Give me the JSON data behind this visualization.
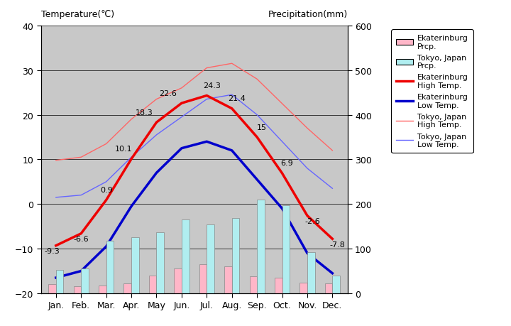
{
  "months": [
    "Jan.",
    "Feb.",
    "Mar.",
    "Apr.",
    "May",
    "Jun.",
    "Jul.",
    "Aug.",
    "Sep.",
    "Oct.",
    "Nov.",
    "Dec."
  ],
  "eka_high": [
    -9.3,
    -6.6,
    0.9,
    10.1,
    18.3,
    22.6,
    24.3,
    21.4,
    15.0,
    6.9,
    -2.6,
    -7.8
  ],
  "eka_low": [
    -16.5,
    -15.0,
    -9.5,
    -0.5,
    7.0,
    12.5,
    14.0,
    12.0,
    5.5,
    -1.0,
    -11.0,
    -15.5
  ],
  "tokyo_high": [
    9.8,
    10.5,
    13.5,
    19.0,
    23.5,
    26.0,
    30.5,
    31.5,
    28.0,
    22.5,
    17.0,
    12.0
  ],
  "tokyo_low": [
    1.5,
    2.0,
    5.0,
    10.5,
    15.5,
    19.5,
    23.5,
    24.5,
    20.0,
    14.0,
    8.0,
    3.5
  ],
  "eka_prcp_mm": [
    20,
    16,
    18,
    22,
    40,
    55,
    65,
    60,
    38,
    35,
    24,
    22
  ],
  "tokyo_prcp_mm": [
    52,
    56,
    117,
    125,
    137,
    165,
    154,
    168,
    210,
    197,
    93,
    40
  ],
  "temp_ylim": [
    -20,
    40
  ],
  "prcp_ylim": [
    0,
    600
  ],
  "background_color": "#c8c8c8",
  "eka_high_color": "#ee0000",
  "eka_low_color": "#0000cc",
  "tokyo_high_color": "#ff6666",
  "tokyo_low_color": "#6666ff",
  "eka_prcp_color": "#ffb6c8",
  "tokyo_prcp_color": "#b0eef0",
  "title_left": "Temperature(℃)",
  "title_right": "Precipitation(mm)",
  "eka_high_labels": [
    -9.3,
    -6.6,
    0.9,
    10.1,
    18.3,
    22.6,
    24.3,
    21.4,
    15,
    6.9,
    -2.6,
    -7.8
  ],
  "label_offsets_x": [
    -0.15,
    0.0,
    0.0,
    -0.3,
    -0.5,
    -0.55,
    0.2,
    0.2,
    0.2,
    0.2,
    0.2,
    0.2
  ],
  "label_offsets_y": [
    -2.0,
    -2.0,
    1.5,
    1.5,
    1.5,
    1.5,
    1.5,
    1.5,
    1.5,
    1.5,
    -2.0,
    -2.0
  ]
}
